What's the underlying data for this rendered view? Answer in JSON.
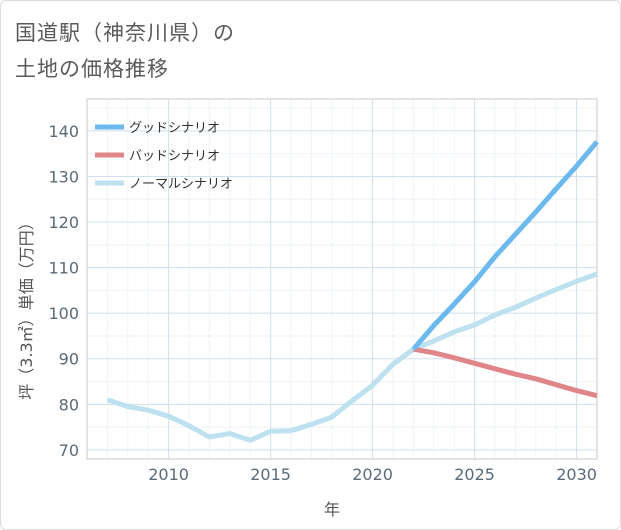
{
  "chart_data": {
    "type": "line",
    "title": [
      "国道駅（神奈川県）の",
      "土地の価格推移"
    ],
    "xlabel": "年",
    "ylabel": "坪（3.3㎡）単価（万円）",
    "xlim": [
      2006,
      2031
    ],
    "ylim": [
      68,
      147
    ],
    "x_ticks": [
      2010,
      2015,
      2020,
      2025,
      2030
    ],
    "y_ticks": [
      70,
      80,
      90,
      100,
      110,
      120,
      130,
      140
    ],
    "grid": true,
    "legend_position": "top-left",
    "series": [
      {
        "name": "グッドシナリオ",
        "color": "#6cb9ed",
        "x": [
          2022,
          2023,
          2024,
          2025,
          2026,
          2027,
          2028,
          2029,
          2030,
          2031
        ],
        "values": [
          92.1,
          97.3,
          102.0,
          106.9,
          112.4,
          117.3,
          122.2,
          127.3,
          132.3,
          137.6
        ]
      },
      {
        "name": "バッドシナリオ",
        "color": "#e0868a",
        "x": [
          2022,
          2023,
          2024,
          2025,
          2026,
          2027,
          2028,
          2029,
          2030,
          2031
        ],
        "values": [
          92.1,
          91.3,
          90.2,
          89.0,
          87.8,
          86.6,
          85.6,
          84.3,
          83.0,
          81.9
        ]
      },
      {
        "name": "ノーマルシナリオ",
        "color": "#bde1ee",
        "x": [
          2007,
          2008,
          2009,
          2010,
          2011,
          2012,
          2013,
          2014,
          2015,
          2016,
          2017,
          2018,
          2019,
          2020,
          2021,
          2022,
          2023,
          2024,
          2025,
          2026,
          2027,
          2028,
          2029,
          2030,
          2031
        ],
        "values": [
          81.0,
          79.5,
          78.7,
          77.4,
          75.3,
          72.8,
          73.6,
          72.1,
          74.1,
          74.2,
          75.6,
          77.2,
          80.8,
          84.2,
          88.8,
          92.1,
          93.9,
          95.9,
          97.4,
          99.6,
          101.3,
          103.3,
          105.2,
          107.0,
          108.6
        ]
      }
    ]
  }
}
